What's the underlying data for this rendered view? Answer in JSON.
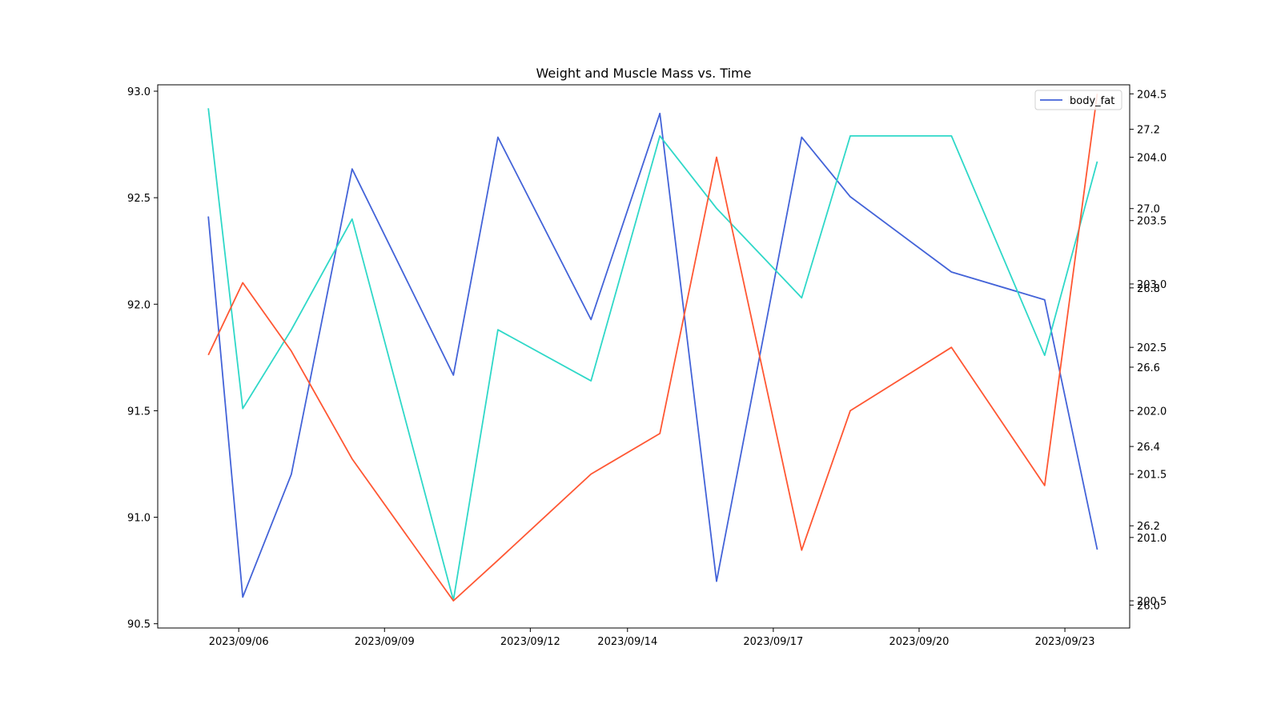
{
  "chart_data": {
    "type": "line",
    "title": "Weight and Muscle Mass vs. Time",
    "x": [
      "2023-09-05T09:00",
      "2023-09-06T02:00",
      "2023-09-07T02:00",
      "2023-09-08T08:00",
      "2023-09-10T10:00",
      "2023-09-11T08:00",
      "2023-09-13T06:00",
      "2023-09-14T16:00",
      "2023-09-15T20:00",
      "2023-09-17T14:00",
      "2023-09-18T14:00",
      "2023-09-20T16:00",
      "2023-09-22T14:00",
      "2023-09-23T16:00"
    ],
    "x_ticks": [
      "2023/09/06",
      "2023/09/09",
      "2023/09/12",
      "2023/09/14",
      "2023/09/17",
      "2023/09/20",
      "2023/09/23"
    ],
    "x_tick_values": [
      "2023-09-06T00:00",
      "2023-09-09T00:00",
      "2023-09-12T00:00",
      "2023-09-14T00:00",
      "2023-09-17T00:00",
      "2023-09-20T00:00",
      "2023-09-23T00:00"
    ],
    "x_range": [
      "2023-09-04T08:00",
      "2023-09-24T08:00"
    ],
    "axes": {
      "left": {
        "range": [
          90.48,
          93.03
        ],
        "ticks": [
          "90.5",
          "91.0",
          "91.5",
          "92.0",
          "92.5",
          "93.0"
        ]
      },
      "right_inner": {
        "range": [
          200.2857,
          204.5714
        ],
        "ticks": [
          "200.5",
          "201.0",
          "201.5",
          "202.0",
          "202.5",
          "203.0",
          "203.5",
          "204.0",
          "204.5"
        ]
      },
      "right_outer": {
        "range": [
          25.9422,
          27.3122
        ],
        "ticks": [
          "26.0",
          "26.2",
          "26.4",
          "26.6",
          "26.8",
          "27.0",
          "27.2"
        ]
      }
    },
    "series": [
      {
        "name": "body_fat",
        "axis": "right_outer",
        "color": "#4363d8",
        "in_legend": true,
        "values": [
          26.98,
          26.02,
          26.33,
          27.1,
          26.58,
          27.18,
          26.72,
          27.24,
          26.06,
          27.18,
          27.03,
          26.84,
          26.77,
          26.14
        ]
      },
      {
        "axis": "left",
        "color": "#2fd8c8",
        "in_legend": false,
        "values": [
          92.92,
          91.51,
          91.88,
          92.4,
          90.61,
          91.88,
          91.64,
          92.79,
          92.45,
          92.03,
          92.79,
          92.79,
          91.76,
          92.67
        ]
      },
      {
        "axis": "right_inner",
        "color": "#ff5733",
        "in_legend": false,
        "values": [
          202.44,
          203.01,
          202.47,
          201.62,
          200.5,
          200.82,
          201.5,
          201.82,
          204.0,
          200.9,
          202.0,
          202.5,
          201.41,
          204.5
        ]
      }
    ],
    "legend": {
      "position": "top-right"
    },
    "grid": false
  }
}
